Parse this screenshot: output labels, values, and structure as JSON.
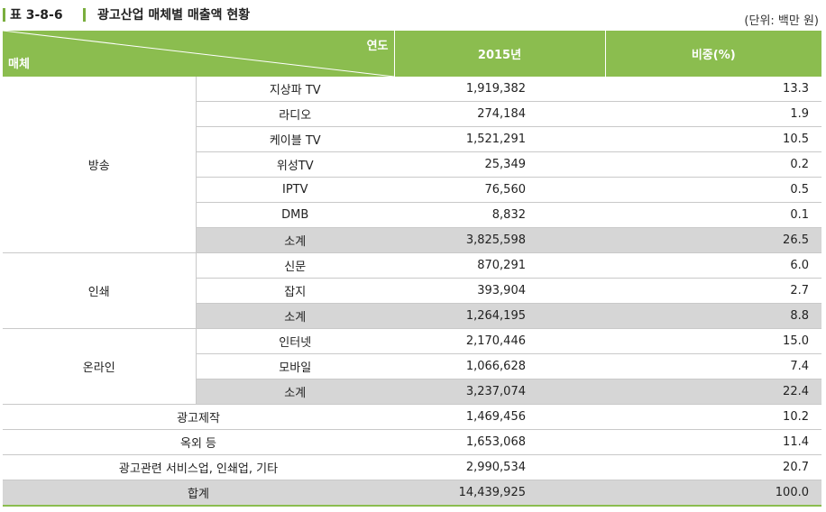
{
  "title": {
    "code": "표 3-8-6",
    "text": "광고산업 매체별 매출액 현황",
    "unit": "(단위: 백만 원)"
  },
  "header": {
    "corner_top": "연도",
    "corner_bottom": "매체",
    "year": "2015년",
    "share": "비중(%)"
  },
  "groups": [
    {
      "category": "방송",
      "rows": [
        {
          "item": "지상파 TV",
          "value": "1,919,382",
          "share": "13.3"
        },
        {
          "item": "라디오",
          "value": "274,184",
          "share": "1.9"
        },
        {
          "item": "케이블 TV",
          "value": "1,521,291",
          "share": "10.5"
        },
        {
          "item": "위성TV",
          "value": "25,349",
          "share": "0.2"
        },
        {
          "item": "IPTV",
          "value": "76,560",
          "share": "0.5"
        },
        {
          "item": "DMB",
          "value": "8,832",
          "share": "0.1"
        },
        {
          "item": "소계",
          "value": "3,825,598",
          "share": "26.5"
        }
      ]
    },
    {
      "category": "인쇄",
      "rows": [
        {
          "item": "신문",
          "value": "870,291",
          "share": "6.0"
        },
        {
          "item": "잡지",
          "value": "393,904",
          "share": "2.7"
        },
        {
          "item": "소계",
          "value": "1,264,195",
          "share": "8.8"
        }
      ]
    },
    {
      "category": "온라인",
      "rows": [
        {
          "item": "인터넷",
          "value": "2,170,446",
          "share": "15.0"
        },
        {
          "item": "모바일",
          "value": "1,066,628",
          "share": "7.4"
        },
        {
          "item": "소계",
          "value": "3,237,074",
          "share": "22.4"
        }
      ]
    }
  ],
  "other_rows": [
    {
      "item": "광고제작",
      "value": "1,469,456",
      "share": "10.2"
    },
    {
      "item": "옥외 등",
      "value": "1,653,068",
      "share": "11.4"
    },
    {
      "item": "광고관련 서비스업, 인쇄업, 기타",
      "value": "2,990,534",
      "share": "20.7"
    }
  ],
  "total": {
    "item": "합계",
    "value": "14,439,925",
    "share": "100.0"
  },
  "colors": {
    "header_green": "#8bbd4f",
    "subtotal_gray": "#d6d6d6",
    "accent_bar": "#7aae3e"
  }
}
